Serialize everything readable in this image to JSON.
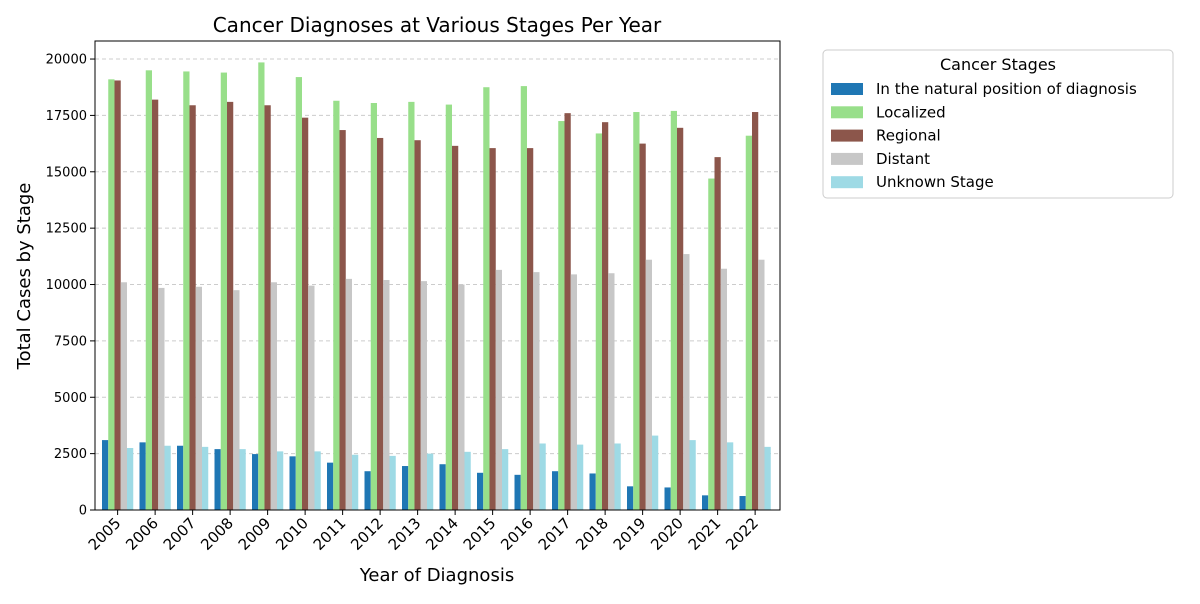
{
  "chart_data": {
    "type": "bar",
    "title": "Cancer Diagnoses at Various Stages Per Year",
    "xlabel": "Year of Diagnosis",
    "ylabel": "Total Cases by Stage",
    "ylim": [
      0,
      20800
    ],
    "yticks": [
      0,
      2500,
      5000,
      7500,
      10000,
      12500,
      15000,
      17500,
      20000
    ],
    "grid": "horizontal-dashed",
    "legend": {
      "title": "Cancer Stages",
      "placement": "outside-top-right"
    },
    "categories": [
      "2005",
      "2006",
      "2007",
      "2008",
      "2009",
      "2010",
      "2011",
      "2012",
      "2013",
      "2014",
      "2015",
      "2016",
      "2017",
      "2018",
      "2019",
      "2020",
      "2021",
      "2022"
    ],
    "series": [
      {
        "name": "In the natural position of diagnosis",
        "color": "#1f77b4",
        "values": [
          3100,
          3000,
          2850,
          2700,
          2480,
          2380,
          2100,
          1720,
          1950,
          2030,
          1650,
          1560,
          1720,
          1620,
          1050,
          1000,
          650,
          620
        ]
      },
      {
        "name": "Localized",
        "color": "#98df8a",
        "values": [
          19100,
          19500,
          19450,
          19400,
          19850,
          19200,
          18150,
          18050,
          18100,
          17980,
          18750,
          18800,
          17250,
          16700,
          17650,
          17700,
          14700,
          16600
        ]
      },
      {
        "name": "Regional",
        "color": "#8c564b",
        "values": [
          19050,
          18200,
          17950,
          18100,
          17950,
          17400,
          16850,
          16500,
          16400,
          16150,
          16050,
          16050,
          17600,
          17200,
          16250,
          16950,
          15650,
          17650
        ]
      },
      {
        "name": "Distant",
        "color": "#c7c7c7",
        "values": [
          10100,
          9850,
          9900,
          9750,
          10100,
          9950,
          10250,
          10200,
          10150,
          10000,
          10650,
          10550,
          10450,
          10500,
          11100,
          11350,
          10700,
          11100
        ]
      },
      {
        "name": "Unknown Stage",
        "color": "#9edae5",
        "values": [
          2750,
          2850,
          2800,
          2700,
          2600,
          2600,
          2450,
          2400,
          2500,
          2580,
          2700,
          2950,
          2900,
          2950,
          3300,
          3100,
          3000,
          2800
        ]
      }
    ]
  }
}
